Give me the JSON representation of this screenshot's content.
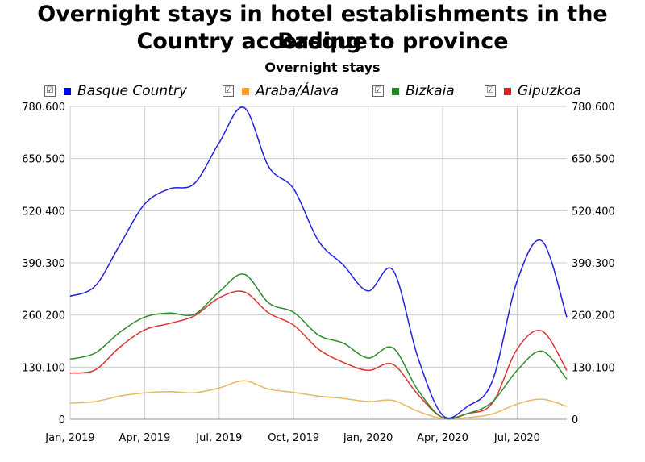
{
  "chart_data": {
    "type": "line",
    "title": "Overnight stays in hotel establishments in the Basque Country according to province",
    "title_lines": [
      "Overnight stays in hotel establishments in the Basque",
      "Country according to province"
    ],
    "subtitle": "Overnight stays",
    "legend_check": "☑",
    "x_tick_labels": [
      "Jan, 2019",
      "Apr, 2019",
      "Jul, 2019",
      "Oct, 2019",
      "Jan, 2020",
      "Apr, 2020",
      "Jul, 2020"
    ],
    "x_tick_index": [
      0,
      3,
      6,
      9,
      12,
      15,
      18
    ],
    "y_ticks": [
      0,
      130100,
      260200,
      390300,
      520400,
      650500,
      780600
    ],
    "y_tick_labels": [
      "0",
      "130.100",
      "260.200",
      "390.300",
      "520.400",
      "650.500",
      "780.600"
    ],
    "ylim": [
      0,
      780600
    ],
    "series": [
      {
        "name": "Basque Country",
        "color": "#2222dd",
        "legend_color": "#0000ff",
        "values": [
          307000,
          332000,
          435000,
          537000,
          575000,
          588000,
          690000,
          778000,
          630000,
          575000,
          445000,
          385000,
          320000,
          372000,
          155000,
          10000,
          32000,
          95000,
          345000,
          445000,
          255000
        ]
      },
      {
        "name": "Araba/Álava",
        "color": "#e8b860",
        "legend_color": "#f0a020",
        "values": [
          40000,
          44000,
          58000,
          66000,
          69000,
          66000,
          78000,
          96000,
          75000,
          67000,
          58000,
          52000,
          44000,
          47000,
          20000,
          1500,
          4000,
          13000,
          38000,
          50000,
          32000
        ]
      },
      {
        "name": "Bizkaia",
        "color": "#2e8b2e",
        "legend_color": "#1a8a1a",
        "values": [
          150000,
          165000,
          217000,
          255000,
          265000,
          262000,
          318000,
          362000,
          290000,
          267000,
          210000,
          190000,
          153000,
          178000,
          73000,
          4000,
          14000,
          43000,
          122000,
          170000,
          100000
        ]
      },
      {
        "name": "Gipuzkoa",
        "color": "#dd3333",
        "legend_color": "#e02020",
        "values": [
          115000,
          123000,
          180000,
          223000,
          239000,
          258000,
          303000,
          318000,
          265000,
          235000,
          175000,
          142000,
          122000,
          137000,
          62000,
          4500,
          14000,
          40000,
          175000,
          220000,
          122000
        ]
      }
    ]
  }
}
